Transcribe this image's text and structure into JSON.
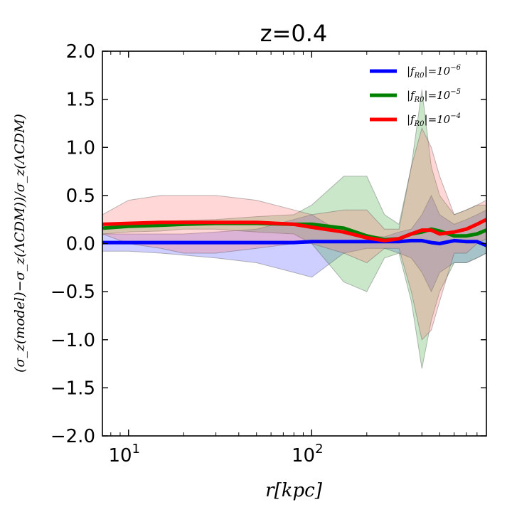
{
  "chart_data": {
    "type": "line",
    "title": "z=0.4",
    "xlabel": "r[kpc]",
    "ylabel": "(σ_z(model)−σ_z(ΛCDM))/σ_z(ΛCDM)",
    "xscale": "log",
    "xlim": [
      7.2,
      900
    ],
    "ylim": [
      -2.0,
      2.0
    ],
    "yticks": [
      -2.0,
      -1.5,
      -1.0,
      -0.5,
      0.0,
      0.5,
      1.0,
      1.5,
      2.0
    ],
    "ytick_labels": [
      "−2.0",
      "−1.5",
      "−1.0",
      "−0.5",
      "0.0",
      "0.5",
      "1.0",
      "1.5",
      "2.0"
    ],
    "xticks": [
      {
        "value": 10,
        "base": "10",
        "exp": "1"
      },
      {
        "value": 100,
        "base": "10",
        "exp": "2"
      }
    ],
    "legend_position": "top-right",
    "series": [
      {
        "name": "|f_R0|=10^-6",
        "legend_label": "|f",
        "legend_sub": "R0",
        "legend_mid": "|=10",
        "legend_exp": "−6",
        "color": "#0000ff",
        "band_color": "#4040ff",
        "x": [
          7.2,
          10,
          15,
          20,
          30,
          50,
          80,
          100,
          150,
          200,
          250,
          300,
          350,
          400,
          450,
          500,
          600,
          700,
          800,
          900
        ],
        "y": [
          0.01,
          0.01,
          0.01,
          0.01,
          0.01,
          0.01,
          0.01,
          0.02,
          0.02,
          0.02,
          0.02,
          0.02,
          0.03,
          0.03,
          0.01,
          0.0,
          0.03,
          0.02,
          0.02,
          -0.02
        ],
        "upper": [
          0.1,
          0.1,
          0.1,
          0.1,
          0.12,
          0.15,
          0.25,
          0.3,
          0.1,
          0.08,
          0.07,
          0.12,
          0.15,
          0.3,
          0.5,
          0.3,
          0.2,
          0.25,
          0.3,
          0.35
        ],
        "lower": [
          -0.08,
          -0.08,
          -0.1,
          -0.12,
          -0.15,
          -0.2,
          -0.3,
          -0.35,
          -0.1,
          -0.05,
          -0.05,
          -0.1,
          -0.15,
          -0.3,
          -0.5,
          -0.3,
          -0.2,
          -0.2,
          -0.15,
          -0.1
        ]
      },
      {
        "name": "|f_R0|=10^-5",
        "legend_label": "|f",
        "legend_sub": "R0",
        "legend_mid": "|=10",
        "legend_exp": "−5",
        "color": "#008000",
        "band_color": "#2ca02c",
        "x": [
          7.2,
          10,
          15,
          20,
          30,
          50,
          80,
          100,
          150,
          200,
          250,
          300,
          350,
          400,
          450,
          500,
          600,
          700,
          800,
          900
        ],
        "y": [
          0.16,
          0.18,
          0.19,
          0.2,
          0.21,
          0.21,
          0.2,
          0.2,
          0.16,
          0.08,
          0.04,
          0.05,
          0.1,
          0.12,
          0.15,
          0.13,
          0.08,
          0.08,
          0.1,
          0.14
        ],
        "upper": [
          0.2,
          0.22,
          0.23,
          0.24,
          0.25,
          0.28,
          0.3,
          0.4,
          0.7,
          0.7,
          0.3,
          0.2,
          0.8,
          1.6,
          0.8,
          0.5,
          0.3,
          0.35,
          0.4,
          0.4
        ],
        "lower": [
          0.1,
          0.12,
          0.13,
          0.15,
          0.15,
          0.12,
          0.1,
          0.0,
          -0.4,
          -0.5,
          -0.15,
          -0.1,
          -0.6,
          -1.3,
          -0.8,
          -0.5,
          -0.2,
          -0.2,
          -0.15,
          -0.1
        ]
      },
      {
        "name": "|f_R0|=10^-4",
        "legend_label": "|f",
        "legend_sub": "R0",
        "legend_mid": "|=10",
        "legend_exp": "−4",
        "color": "#ff0000",
        "band_color": "#ff6060",
        "x": [
          7.2,
          10,
          15,
          20,
          30,
          50,
          80,
          100,
          150,
          200,
          250,
          300,
          350,
          400,
          450,
          500,
          600,
          700,
          800,
          900
        ],
        "y": [
          0.2,
          0.21,
          0.22,
          0.22,
          0.22,
          0.22,
          0.2,
          0.17,
          0.12,
          0.06,
          0.03,
          0.05,
          0.1,
          0.14,
          0.14,
          0.1,
          0.12,
          0.15,
          0.2,
          0.25
        ],
        "upper": [
          0.3,
          0.45,
          0.5,
          0.5,
          0.5,
          0.45,
          0.35,
          0.3,
          0.35,
          0.35,
          0.15,
          0.15,
          0.8,
          1.2,
          1.0,
          0.7,
          0.3,
          0.35,
          0.4,
          0.45
        ],
        "lower": [
          0.1,
          0.0,
          -0.05,
          -0.1,
          -0.1,
          -0.05,
          0.0,
          0.0,
          -0.1,
          -0.2,
          -0.05,
          -0.05,
          -0.5,
          -1.0,
          -0.9,
          -0.6,
          -0.1,
          -0.1,
          0.0,
          0.05
        ]
      }
    ]
  }
}
